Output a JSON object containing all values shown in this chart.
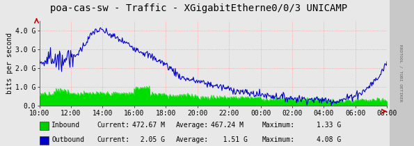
{
  "title": "poa-cas-sw - Traffic - XGigabitEtherne0/0/3 UNICAMP",
  "ylabel": "bits per second",
  "background_color": "#e8e8e8",
  "plot_bg_color": "#e8e8e8",
  "grid_color": "#ff8888",
  "ylim": [
    0,
    4500000000.0
  ],
  "yticks": [
    0,
    1000000000.0,
    2000000000.0,
    3000000000.0,
    4000000000.0
  ],
  "ytick_labels": [
    "0.0",
    "1.0 G",
    "2.0 G",
    "3.0 G",
    "4.0 G"
  ],
  "xtick_labels": [
    "10:00",
    "12:00",
    "14:00",
    "16:00",
    "18:00",
    "20:00",
    "22:00",
    "00:00",
    "02:00",
    "04:00",
    "06:00",
    "08:00"
  ],
  "num_points": 500,
  "inbound_color": "#00dd00",
  "outbound_color": "#0000cc",
  "arrow_color": "#cc0000",
  "legend_items": [
    {
      "label": "Inbound",
      "color": "#00cc00",
      "current": "472.67 M",
      "average": "467.24 M",
      "maximum": "1.33 G"
    },
    {
      "label": "Outbound",
      "color": "#0000cc",
      "current": "  2.05 G",
      "average": "   1.51 G",
      "maximum": "4.08 G"
    }
  ],
  "rrdtool_text": "RRDTOOL / TOBI OETIKER",
  "title_fontsize": 10,
  "axis_fontsize": 7,
  "legend_fontsize": 7
}
